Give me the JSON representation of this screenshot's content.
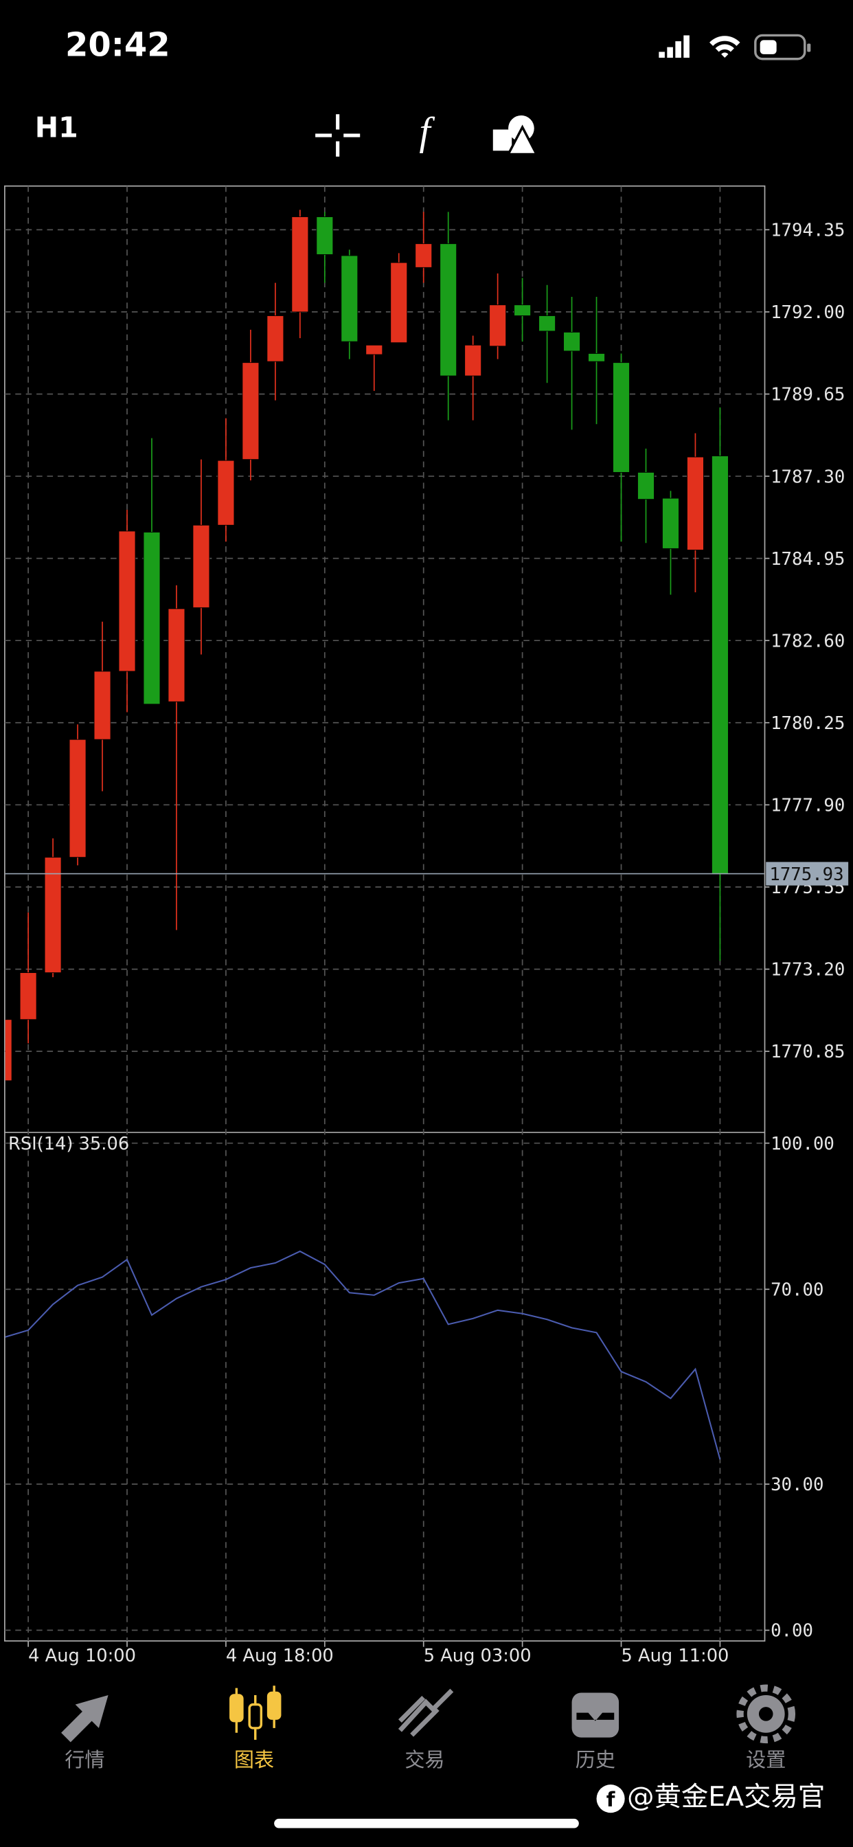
{
  "status_bar": {
    "time": "20:42"
  },
  "toolbar": {
    "timeframe": "H1"
  },
  "chart_data": [
    {
      "type": "candlestick",
      "categories": [
        null,
        "4 Aug 10:00",
        null,
        null,
        null,
        null,
        null,
        null,
        null,
        "4 Aug 18:00",
        null,
        null,
        null,
        null,
        null,
        null,
        null,
        "5 Aug 03:00",
        null,
        null,
        null,
        null,
        null,
        null,
        null,
        "5 Aug 11:00",
        null,
        null,
        null,
        null
      ],
      "open": [
        1770.01,
        1771.76,
        1773.1,
        1776.4,
        1779.77,
        1781.72,
        1785.7,
        1780.85,
        1783.54,
        1785.9,
        1787.78,
        1790.58,
        1792.0,
        1794.72,
        1793.61,
        1790.78,
        1791.12,
        1793.27,
        1793.95,
        1790.17,
        1791.02,
        1792.2,
        1791.89,
        1791.42,
        1790.81,
        1790.55,
        1787.41,
        1786.67,
        1785.19,
        1787.88
      ],
      "high": [
        1771.8,
        1774.82,
        1776.94,
        1780.2,
        1783.14,
        1786.34,
        1788.39,
        1784.18,
        1787.78,
        1788.96,
        1791.49,
        1792.83,
        1794.92,
        1794.86,
        1793.78,
        1791.05,
        1793.68,
        1794.86,
        1794.86,
        1791.32,
        1793.1,
        1792.97,
        1792.77,
        1792.43,
        1792.43,
        1790.81,
        1788.09,
        1786.88,
        1788.53,
        1789.27
      ],
      "low": [
        1770.0,
        1771.08,
        1772.97,
        1776.17,
        1778.29,
        1780.55,
        1780.78,
        1774.32,
        1782.2,
        1785.43,
        1787.18,
        1789.47,
        1791.25,
        1792.83,
        1790.65,
        1789.74,
        1791.12,
        1792.83,
        1788.9,
        1788.9,
        1790.65,
        1791.15,
        1789.97,
        1788.63,
        1788.79,
        1785.43,
        1785.39,
        1783.91,
        1783.98,
        1773.44
      ],
      "close": [
        1771.76,
        1773.1,
        1776.4,
        1779.77,
        1781.72,
        1785.73,
        1780.78,
        1783.51,
        1785.9,
        1787.75,
        1790.55,
        1791.89,
        1794.72,
        1793.64,
        1791.15,
        1791.05,
        1793.41,
        1793.95,
        1790.17,
        1791.05,
        1792.2,
        1791.89,
        1791.45,
        1790.88,
        1790.58,
        1787.41,
        1786.64,
        1785.23,
        1787.85,
        1775.93
      ],
      "up_color": "#e2311d",
      "down_color": "#1a9e1a",
      "ylim": [
        1768.53,
        1795.6
      ],
      "yticks": [
        1794.35,
        {
          "value": 1792,
          "label": "1792.00"
        },
        1789.65,
        {
          "value": 1787.3,
          "label": "1787.30"
        },
        1784.95,
        {
          "value": 1782.6,
          "label": "1782.60"
        },
        1780.25,
        {
          "value": 1777.9,
          "label": "1777.90"
        },
        1775.55,
        {
          "value": 1773.2,
          "label": "1773.20"
        },
        1770.85
      ],
      "current_price": 1775.93,
      "grid": true
    },
    {
      "type": "line",
      "title": "RSI(14)",
      "current_value": 35.06,
      "color": "#4b5cb0",
      "values": [
        60.1,
        61.6,
        66.9,
        70.8,
        72.5,
        76.1,
        64.7,
        68.1,
        70.5,
        72.0,
        74.4,
        75.4,
        77.8,
        75.1,
        69.3,
        68.8,
        71.3,
        72.2,
        62.8,
        64.0,
        65.7,
        65.0,
        63.8,
        62.1,
        61.1,
        53.1,
        51.0,
        47.6,
        53.6,
        35.06
      ],
      "ylim": [
        -2.2,
        102.2
      ],
      "yticks": [
        {
          "value": 100,
          "label": "100.00"
        },
        {
          "value": 70,
          "label": "70.00"
        },
        {
          "value": 30,
          "label": "30.00"
        },
        {
          "value": 0,
          "label": "0.00"
        }
      ],
      "grid": true
    }
  ],
  "tab_bar": {
    "tabs": [
      "行情",
      "图表",
      "交易",
      "历史",
      "设置"
    ],
    "active": 1
  },
  "watermark": "@黄金EA交易官"
}
